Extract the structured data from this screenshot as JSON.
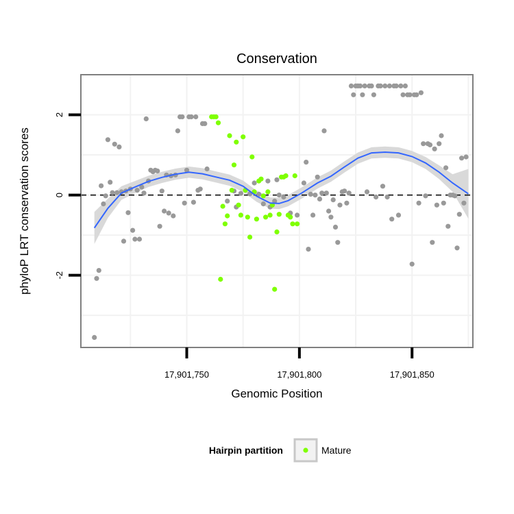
{
  "chart_data": {
    "type": "scatter",
    "title": "Conservation",
    "xlabel": "Genomic Position",
    "ylabel": "phyloP LRT conservation scores",
    "xlim": [
      17901703,
      17901877
    ],
    "ylim": [
      -3.8,
      3.0
    ],
    "x_ticks": [
      {
        "value": 17901750,
        "label": "17,901,750"
      },
      {
        "value": 17901800,
        "label": "17,901,800"
      },
      {
        "value": 17901850,
        "label": "17,901,850"
      }
    ],
    "y_ticks": [
      {
        "value": -2,
        "label": "-2"
      },
      {
        "value": 0,
        "label": "0"
      },
      {
        "value": 2,
        "label": "2"
      }
    ],
    "grid": true,
    "reference_line": {
      "y": 0,
      "style": "dashed"
    },
    "legend": {
      "title": "Hairpin partition",
      "position": "bottom",
      "entries": [
        {
          "label": "Mature",
          "color": "#7fff00"
        }
      ]
    },
    "colors": {
      "other": "#999999",
      "mature": "#7fff00",
      "smooth_line": "#3366ff",
      "ribbon": "#d9d9d9",
      "panel_border": "#7f7f7f",
      "grid": "#f2f2f2"
    },
    "series": [
      {
        "color": "#999999",
        "points": [
          [
            17901709,
            -3.55
          ],
          [
            17901710,
            -2.08
          ],
          [
            17901711,
            -1.88
          ],
          [
            17901712,
            0.23
          ],
          [
            17901713,
            -0.22
          ],
          [
            17901714,
            -0.02
          ],
          [
            17901715,
            1.38
          ],
          [
            17901716,
            0.32
          ],
          [
            17901717,
            0.06
          ],
          [
            17901718,
            1.27
          ],
          [
            17901719,
            0.06
          ],
          [
            17901720,
            1.2
          ],
          [
            17901721,
            0.08
          ],
          [
            17901722,
            -1.15
          ],
          [
            17901723,
            0.1
          ],
          [
            17901724,
            -0.44
          ],
          [
            17901725,
            0.15
          ],
          [
            17901726,
            -0.88
          ],
          [
            17901727,
            -1.1
          ],
          [
            17901728,
            0.12
          ],
          [
            17901729,
            -1.1
          ],
          [
            17901730,
            0.2
          ],
          [
            17901731,
            0.05
          ],
          [
            17901732,
            1.9
          ],
          [
            17901733,
            0.35
          ],
          [
            17901734,
            0.62
          ],
          [
            17901735,
            0.58
          ],
          [
            17901736,
            0.62
          ],
          [
            17901737,
            0.6
          ],
          [
            17901738,
            -0.78
          ],
          [
            17901739,
            0.1
          ],
          [
            17901740,
            -0.4
          ],
          [
            17901741,
            0.5
          ],
          [
            17901742,
            -0.45
          ],
          [
            17901743,
            0.48
          ],
          [
            17901744,
            -0.52
          ],
          [
            17901745,
            0.5
          ],
          [
            17901746,
            1.6
          ],
          [
            17901747,
            1.95
          ],
          [
            17901748,
            1.95
          ],
          [
            17901749,
            -0.2
          ],
          [
            17901750,
            0.62
          ],
          [
            17901751,
            1.95
          ],
          [
            17901752,
            1.95
          ],
          [
            17901753,
            -0.18
          ],
          [
            17901754,
            1.95
          ],
          [
            17901755,
            0.12
          ],
          [
            17901756,
            0.15
          ],
          [
            17901757,
            1.78
          ],
          [
            17901758,
            1.78
          ],
          [
            17901759,
            0.65
          ],
          [
            17901768,
            -0.15
          ],
          [
            17901771,
            0.1
          ],
          [
            17901772,
            -0.3
          ],
          [
            17901774,
            0.04
          ],
          [
            17901778,
            0.03
          ],
          [
            17901780,
            0.3
          ],
          [
            17901782,
            0.02
          ],
          [
            17901784,
            -0.22
          ],
          [
            17901786,
            0.35
          ],
          [
            17901787,
            -0.3
          ],
          [
            17901789,
            -0.15
          ],
          [
            17901790,
            0.38
          ],
          [
            17901791,
            0.0
          ],
          [
            17901793,
            -0.05
          ],
          [
            17901796,
            -0.45
          ],
          [
            17901799,
            -0.5
          ],
          [
            17901802,
            0.3
          ],
          [
            17901803,
            0.82
          ],
          [
            17901804,
            -1.35
          ],
          [
            17901805,
            0.02
          ],
          [
            17901806,
            -0.5
          ],
          [
            17901807,
            0.0
          ],
          [
            17901808,
            0.45
          ],
          [
            17901809,
            -0.1
          ],
          [
            17901810,
            0.05
          ],
          [
            17901811,
            1.6
          ],
          [
            17901812,
            0.05
          ],
          [
            17901813,
            -0.4
          ],
          [
            17901814,
            -0.55
          ],
          [
            17901815,
            -0.12
          ],
          [
            17901816,
            -0.8
          ],
          [
            17901817,
            -1.18
          ],
          [
            17901818,
            -0.25
          ],
          [
            17901819,
            0.08
          ],
          [
            17901820,
            0.1
          ],
          [
            17901821,
            -0.2
          ],
          [
            17901822,
            0.05
          ],
          [
            17901823,
            2.72
          ],
          [
            17901824,
            2.5
          ],
          [
            17901825,
            2.72
          ],
          [
            17901826,
            2.72
          ],
          [
            17901827,
            2.72
          ],
          [
            17901828,
            2.5
          ],
          [
            17901829,
            2.72
          ],
          [
            17901830,
            0.08
          ],
          [
            17901831,
            2.72
          ],
          [
            17901832,
            2.72
          ],
          [
            17901833,
            2.5
          ],
          [
            17901834,
            -0.05
          ],
          [
            17901835,
            2.72
          ],
          [
            17901836,
            2.72
          ],
          [
            17901837,
            0.22
          ],
          [
            17901838,
            2.72
          ],
          [
            17901839,
            -0.05
          ],
          [
            17901840,
            2.72
          ],
          [
            17901841,
            -0.6
          ],
          [
            17901842,
            2.72
          ],
          [
            17901843,
            2.72
          ],
          [
            17901844,
            -0.5
          ],
          [
            17901845,
            2.72
          ],
          [
            17901846,
            2.5
          ],
          [
            17901847,
            2.72
          ],
          [
            17901848,
            2.5
          ],
          [
            17901849,
            2.5
          ],
          [
            17901850,
            -1.72
          ],
          [
            17901851,
            2.5
          ],
          [
            17901852,
            2.5
          ],
          [
            17901853,
            -0.2
          ],
          [
            17901854,
            2.55
          ],
          [
            17901855,
            1.28
          ],
          [
            17901856,
            -0.02
          ],
          [
            17901857,
            1.28
          ],
          [
            17901858,
            1.25
          ],
          [
            17901859,
            -1.18
          ],
          [
            17901860,
            1.15
          ],
          [
            17901861,
            -0.25
          ],
          [
            17901862,
            1.28
          ],
          [
            17901863,
            1.48
          ],
          [
            17901864,
            -0.2
          ],
          [
            17901865,
            0.68
          ],
          [
            17901866,
            -0.78
          ],
          [
            17901867,
            0.0
          ],
          [
            17901868,
            0.0
          ],
          [
            17901869,
            -0.02
          ],
          [
            17901870,
            -1.32
          ],
          [
            17901871,
            -0.48
          ],
          [
            17901872,
            0.92
          ],
          [
            17901873,
            -0.2
          ],
          [
            17901874,
            0.95
          ]
        ]
      },
      {
        "name": "Mature",
        "color": "#7fff00",
        "points": [
          [
            17901761,
            1.95
          ],
          [
            17901762,
            1.95
          ],
          [
            17901763,
            1.95
          ],
          [
            17901764,
            1.8
          ],
          [
            17901765,
            -2.1
          ],
          [
            17901766,
            -0.28
          ],
          [
            17901767,
            -0.72
          ],
          [
            17901768,
            -0.52
          ],
          [
            17901769,
            1.48
          ],
          [
            17901770,
            0.12
          ],
          [
            17901771,
            0.75
          ],
          [
            17901772,
            1.32
          ],
          [
            17901773,
            -0.25
          ],
          [
            17901774,
            -0.5
          ],
          [
            17901775,
            1.45
          ],
          [
            17901776,
            0.12
          ],
          [
            17901777,
            -0.55
          ],
          [
            17901778,
            -1.05
          ],
          [
            17901779,
            0.95
          ],
          [
            17901780,
            0.08
          ],
          [
            17901781,
            -0.6
          ],
          [
            17901782,
            0.35
          ],
          [
            17901783,
            0.4
          ],
          [
            17901784,
            -0.02
          ],
          [
            17901785,
            -0.55
          ],
          [
            17901786,
            0.08
          ],
          [
            17901787,
            -0.5
          ],
          [
            17901788,
            -0.25
          ],
          [
            17901789,
            -2.35
          ],
          [
            17901790,
            -0.92
          ],
          [
            17901791,
            -0.48
          ],
          [
            17901792,
            0.45
          ],
          [
            17901793,
            0.45
          ],
          [
            17901794,
            0.48
          ],
          [
            17901795,
            -0.5
          ],
          [
            17901796,
            -0.55
          ],
          [
            17901797,
            -0.72
          ],
          [
            17901798,
            0.48
          ],
          [
            17901799,
            -0.72
          ]
        ]
      }
    ],
    "smooth": [
      [
        17901709,
        -0.82
      ],
      [
        17901715,
        -0.33
      ],
      [
        17901721,
        0.05
      ],
      [
        17901727,
        0.2
      ],
      [
        17901733,
        0.34
      ],
      [
        17901739,
        0.44
      ],
      [
        17901745,
        0.52
      ],
      [
        17901751,
        0.57
      ],
      [
        17901757,
        0.53
      ],
      [
        17901763,
        0.45
      ],
      [
        17901769,
        0.37
      ],
      [
        17901775,
        0.22
      ],
      [
        17901781,
        -0.03
      ],
      [
        17901787,
        -0.2
      ],
      [
        17901791,
        -0.21
      ],
      [
        17901795,
        -0.14
      ],
      [
        17901801,
        0.05
      ],
      [
        17901808,
        0.3
      ],
      [
        17901814,
        0.47
      ],
      [
        17901820,
        0.7
      ],
      [
        17901826,
        0.92
      ],
      [
        17901832,
        1.05
      ],
      [
        17901838,
        1.07
      ],
      [
        17901844,
        1.05
      ],
      [
        17901850,
        0.96
      ],
      [
        17901856,
        0.8
      ],
      [
        17901862,
        0.57
      ],
      [
        17901868,
        0.3
      ],
      [
        17901875,
        0.03
      ]
    ],
    "ribbon_halfwidth": [
      0.4,
      0.24,
      0.17,
      0.15,
      0.14,
      0.14,
      0.14,
      0.14,
      0.14,
      0.14,
      0.14,
      0.14,
      0.14,
      0.14,
      0.14,
      0.14,
      0.14,
      0.14,
      0.14,
      0.14,
      0.14,
      0.14,
      0.14,
      0.14,
      0.14,
      0.15,
      0.17,
      0.22,
      0.62
    ]
  }
}
